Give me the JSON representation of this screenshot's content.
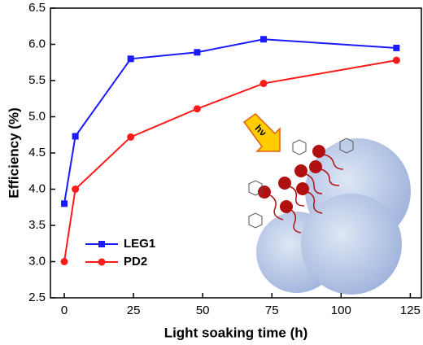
{
  "chart_data": {
    "type": "line",
    "x_label": "Light soaking time (h)",
    "y_label": "Efficiency (%)",
    "x": [
      0,
      4,
      24,
      48,
      72,
      120
    ],
    "series": [
      {
        "name": "LEG1",
        "color": "#1a1aff",
        "marker": "square",
        "values": [
          3.8,
          4.73,
          5.8,
          5.89,
          6.07,
          5.95
        ]
      },
      {
        "name": "PD2",
        "color": "#ff1a1a",
        "marker": "circle",
        "values": [
          3.0,
          4.0,
          4.72,
          5.11,
          5.46,
          5.78
        ]
      }
    ],
    "xlim": [
      -5,
      129
    ],
    "xticks": [
      0,
      25,
      50,
      75,
      100,
      125
    ],
    "ylim": [
      2.5,
      6.5
    ],
    "yticks": [
      2.5,
      {
        "value": 3.0,
        "label": "3.0"
      },
      3.5,
      {
        "value": 4.0,
        "label": "4.0"
      },
      4.5,
      {
        "value": 5.0,
        "label": "5.0"
      },
      5.5,
      {
        "value": 6.0,
        "label": "6.0"
      },
      6.5
    ],
    "legend": "lower left",
    "annotations": [
      "hν"
    ]
  }
}
